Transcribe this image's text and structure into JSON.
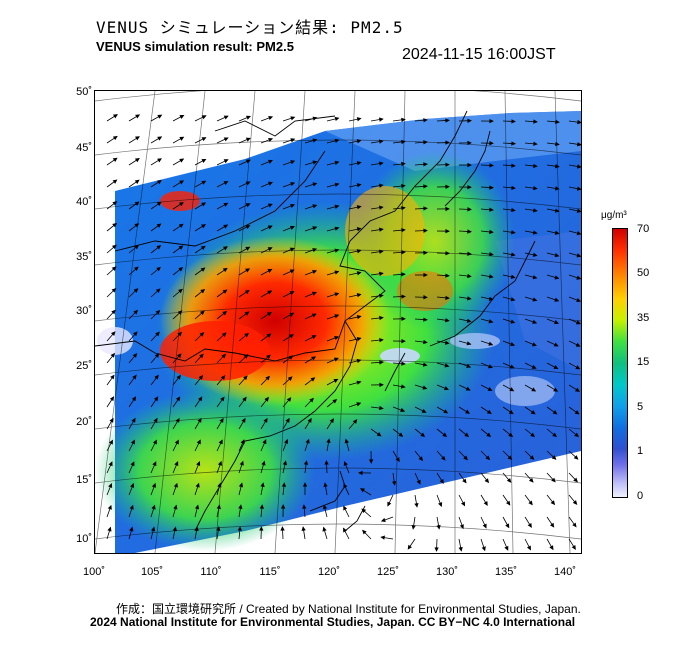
{
  "header": {
    "title_jp": "VENUS シミュレーション結果: PM2.5",
    "title_en": "VENUS simulation result: PM2.5",
    "timestamp": "2024-11-15 16:00JST"
  },
  "map": {
    "lat_ticks": [
      "50˚",
      "45˚",
      "40˚",
      "35˚",
      "30˚",
      "25˚",
      "20˚",
      "15˚",
      "10˚"
    ],
    "lon_ticks": [
      "100˚",
      "105˚",
      "110˚",
      "115˚",
      "120˚",
      "125˚",
      "130˚",
      "135˚",
      "140˚"
    ],
    "lat_range": [
      9,
      51
    ],
    "lon_range": [
      100,
      142
    ],
    "projection": "lambert-conformal",
    "overlay": "wind-vectors"
  },
  "colorbar": {
    "unit": "μg/m³",
    "ticks": [
      "70",
      "50",
      "35",
      "15",
      "5",
      "1",
      "0"
    ],
    "colors": [
      "#d00000",
      "#ff8c00",
      "#ffd000",
      "#40e040",
      "#00c8c8",
      "#1070e0",
      "#f0f0ff"
    ]
  },
  "footer": {
    "credit_line1": "作成：国立環境研究所 / Created by National Institute for Environmental Studies, Japan.",
    "credit_line2": "2024 National Institute for Environmental Studies, Japan. CC BY−NC 4.0 International"
  }
}
